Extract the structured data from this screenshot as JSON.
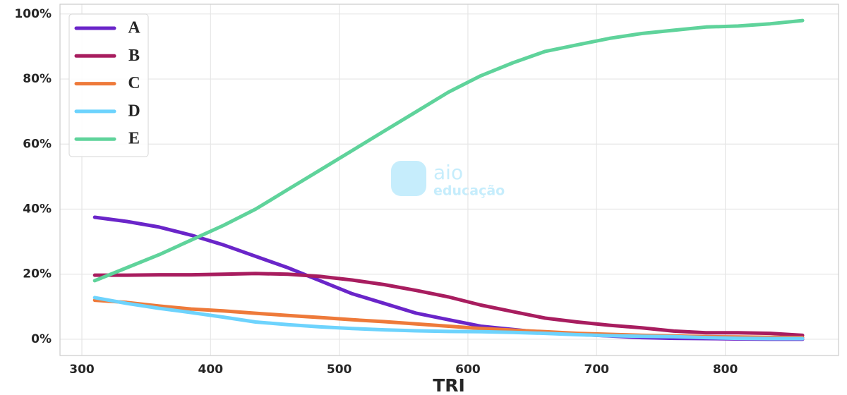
{
  "chart_data": {
    "type": "line",
    "xlabel": "TRI",
    "x": [
      310,
      335,
      360,
      385,
      410,
      435,
      460,
      485,
      510,
      535,
      560,
      585,
      610,
      635,
      660,
      685,
      710,
      735,
      760,
      785,
      810,
      835,
      860
    ],
    "series": [
      {
        "name": "A",
        "color": "#6a25c9",
        "values": [
          37.5,
          36.2,
          34.5,
          32,
          29,
          25.5,
          22,
          18,
          14,
          11,
          8,
          6,
          4,
          3,
          2,
          1.5,
          1,
          0.5,
          0.3,
          0.2,
          0.1,
          0,
          0
        ]
      },
      {
        "name": "B",
        "color": "#a81d5f",
        "values": [
          19.7,
          19.7,
          19.8,
          19.8,
          20.0,
          20.2,
          20.0,
          19.3,
          18.2,
          16.8,
          15.0,
          13.0,
          10.5,
          8.5,
          6.5,
          5.3,
          4.3,
          3.5,
          2.5,
          2.0,
          2.0,
          1.8,
          1.2
        ]
      },
      {
        "name": "C",
        "color": "#ee7a3a",
        "values": [
          12,
          11.3,
          10.2,
          9.3,
          8.7,
          8.0,
          7.3,
          6.7,
          6.0,
          5.4,
          4.7,
          4.0,
          3.3,
          2.8,
          2.3,
          1.8,
          1.5,
          1.2,
          1.0,
          0.8,
          0.7,
          0.6,
          0.5
        ]
      },
      {
        "name": "D",
        "color": "#6dd3fd",
        "values": [
          12.8,
          11,
          9.5,
          8.2,
          6.8,
          5.3,
          4.5,
          3.8,
          3.3,
          2.9,
          2.6,
          2.4,
          2.3,
          2.1,
          1.8,
          1.4,
          1.1,
          0.9,
          0.8,
          0.5,
          0.3,
          0.2,
          0.2
        ]
      },
      {
        "name": "E",
        "color": "#5fd39b",
        "values": [
          18,
          22,
          26,
          30.5,
          35,
          40,
          46,
          52,
          58,
          64,
          70,
          76,
          81,
          85,
          88.5,
          90.5,
          92.5,
          94,
          95,
          96,
          96.3,
          97,
          98
        ]
      }
    ],
    "xlim": [
      283,
      888
    ],
    "xticks": [
      300,
      400,
      500,
      600,
      700,
      800
    ],
    "ylim": [
      -5,
      103
    ],
    "yticks": [
      {
        "value": 0,
        "label": "0%"
      },
      {
        "value": 20,
        "label": "20%"
      },
      {
        "value": 40,
        "label": "40%"
      },
      {
        "value": 60,
        "label": "60%"
      },
      {
        "value": 80,
        "label": "80%"
      },
      {
        "value": 100,
        "label": "100%"
      }
    ],
    "grid": true,
    "legend": "upper-left"
  },
  "watermark": {
    "line1": "aio",
    "line2": "educação"
  }
}
